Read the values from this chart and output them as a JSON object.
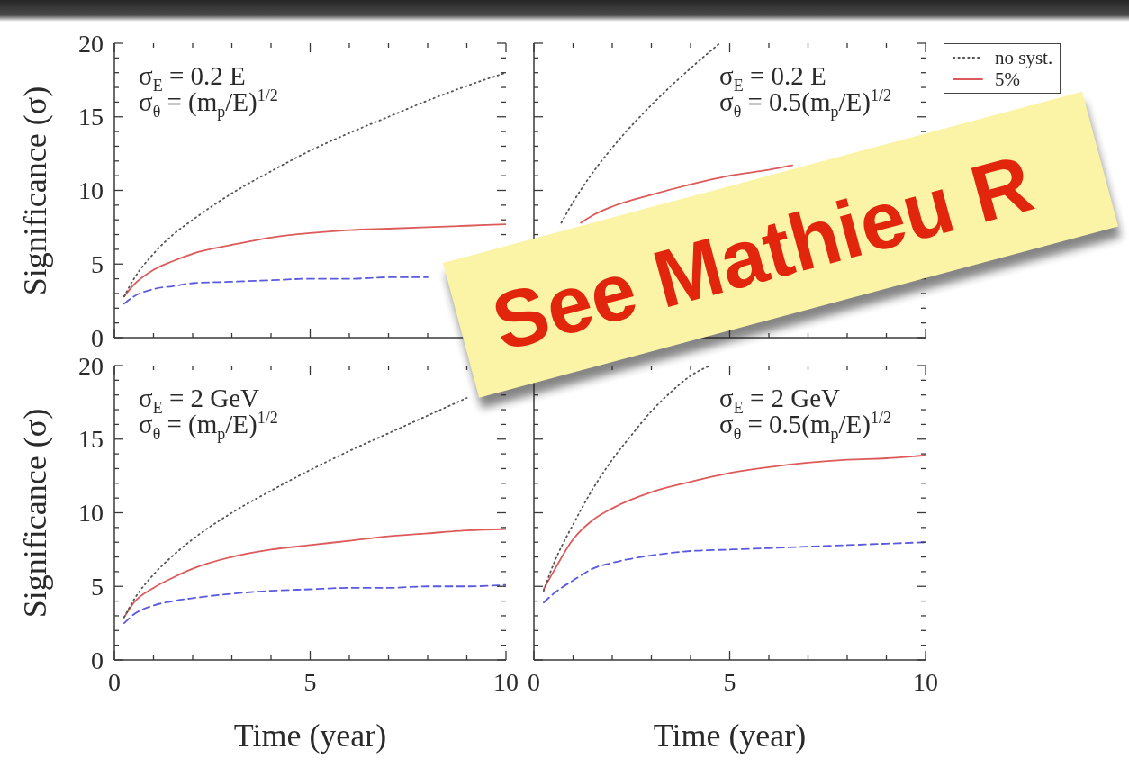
{
  "chart_data": [
    {
      "type": "line",
      "ylabel": "Significance (σ)",
      "tick_labels": "y",
      "xlim": [
        0,
        10
      ],
      "ylim": [
        0,
        20
      ],
      "xticks": [
        0,
        {
          "value": 1,
          "label": null
        },
        {
          "value": 2,
          "label": null
        },
        {
          "value": 3,
          "label": null
        },
        {
          "value": 4,
          "label": null
        },
        5,
        {
          "value": 6,
          "label": null
        },
        {
          "value": 7,
          "label": null
        },
        {
          "value": 8,
          "label": null
        },
        {
          "value": 9,
          "label": null
        },
        10
      ],
      "yticks": [
        0,
        {
          "value": 1,
          "label": null
        },
        {
          "value": 2,
          "label": null
        },
        {
          "value": 3,
          "label": null
        },
        {
          "value": 4,
          "label": null
        },
        5,
        {
          "value": 6,
          "label": null
        },
        {
          "value": 7,
          "label": null
        },
        {
          "value": 8,
          "label": null
        },
        {
          "value": 9,
          "label": null
        },
        10,
        {
          "value": 11,
          "label": null
        },
        {
          "value": 12,
          "label": null
        },
        {
          "value": 13,
          "label": null
        },
        {
          "value": 14,
          "label": null
        },
        15,
        {
          "value": 16,
          "label": null
        },
        {
          "value": 17,
          "label": null
        },
        {
          "value": 18,
          "label": null
        },
        {
          "value": 19,
          "label": null
        },
        20
      ],
      "annotations": [
        "σ$_{E}$ = 0.2 E",
        "σ$_{θ}$ = (m$_{p}$/E)$^{1/2}$"
      ],
      "x": [
        0.25,
        0.5,
        1,
        1.5,
        2,
        3,
        4,
        5,
        6,
        7,
        8,
        9,
        10
      ],
      "series": [
        {
          "color": "#555555",
          "line_style": "dotted",
          "values": [
            2.8,
            4.0,
            5.7,
            7.0,
            8.0,
            9.8,
            11.3,
            12.7,
            13.9,
            15.0,
            16.1,
            17.1,
            18.0
          ]
        },
        {
          "color": "#dd5a5a",
          "line_style": "solid",
          "values": [
            2.8,
            3.6,
            4.6,
            5.2,
            5.7,
            6.3,
            6.8,
            7.1,
            7.3,
            7.4,
            7.5,
            7.6,
            7.7
          ]
        },
        {
          "color": "#5a5ae0",
          "line_style": "dashed",
          "values": [
            2.3,
            2.8,
            3.3,
            3.5,
            3.7,
            3.8,
            3.9,
            4.0,
            4.0,
            4.1,
            4.1,
            null,
            null
          ]
        }
      ]
    },
    {
      "type": "line",
      "tick_labels": false,
      "legend": "right",
      "xlim": [
        0,
        10
      ],
      "ylim": [
        0,
        20
      ],
      "xticks": [
        0,
        {
          "value": 1,
          "label": null
        },
        {
          "value": 2,
          "label": null
        },
        {
          "value": 3,
          "label": null
        },
        {
          "value": 4,
          "label": null
        },
        5,
        {
          "value": 6,
          "label": null
        },
        {
          "value": 7,
          "label": null
        },
        {
          "value": 8,
          "label": null
        },
        {
          "value": 9,
          "label": null
        },
        10
      ],
      "yticks": [
        0,
        {
          "value": 1,
          "label": null
        },
        {
          "value": 2,
          "label": null
        },
        {
          "value": 3,
          "label": null
        },
        {
          "value": 4,
          "label": null
        },
        5,
        {
          "value": 6,
          "label": null
        },
        {
          "value": 7,
          "label": null
        },
        {
          "value": 8,
          "label": null
        },
        {
          "value": 9,
          "label": null
        },
        10,
        {
          "value": 11,
          "label": null
        },
        {
          "value": 12,
          "label": null
        },
        {
          "value": 13,
          "label": null
        },
        {
          "value": 14,
          "label": null
        },
        15,
        {
          "value": 16,
          "label": null
        },
        {
          "value": 17,
          "label": null
        },
        {
          "value": 18,
          "label": null
        },
        {
          "value": 19,
          "label": null
        },
        20
      ],
      "annotations": [
        "σ$_{E}$ = 0.2 E",
        "σ$_{θ}$ = 0.5(m$_{p}$/E)$^{1/2}$"
      ],
      "series": [
        {
          "name": "no syst.",
          "color": "#555555",
          "line_style": "dotted",
          "x": [
            0.7,
            1,
            1.5,
            2,
            3,
            4,
            4.75
          ],
          "values": [
            7.8,
            9.2,
            11.2,
            12.9,
            15.8,
            18.3,
            20.0
          ]
        },
        {
          "name": "5%",
          "color": "#dd5a5a",
          "line_style": "solid",
          "x": [
            1.2,
            1.5,
            2,
            3,
            4,
            5,
            6,
            6.6
          ],
          "values": [
            7.8,
            8.3,
            8.9,
            9.7,
            10.4,
            11.0,
            11.4,
            11.7
          ]
        }
      ]
    },
    {
      "type": "line",
      "xlabel": "Time (year)",
      "ylabel": "Significance (σ)",
      "xlim": [
        0,
        10
      ],
      "ylim": [
        0,
        20
      ],
      "xticks": [
        0,
        {
          "value": 1,
          "label": null
        },
        {
          "value": 2,
          "label": null
        },
        {
          "value": 3,
          "label": null
        },
        {
          "value": 4,
          "label": null
        },
        5,
        {
          "value": 6,
          "label": null
        },
        {
          "value": 7,
          "label": null
        },
        {
          "value": 8,
          "label": null
        },
        {
          "value": 9,
          "label": null
        },
        10
      ],
      "yticks": [
        0,
        {
          "value": 1,
          "label": null
        },
        {
          "value": 2,
          "label": null
        },
        {
          "value": 3,
          "label": null
        },
        {
          "value": 4,
          "label": null
        },
        5,
        {
          "value": 6,
          "label": null
        },
        {
          "value": 7,
          "label": null
        },
        {
          "value": 8,
          "label": null
        },
        {
          "value": 9,
          "label": null
        },
        10,
        {
          "value": 11,
          "label": null
        },
        {
          "value": 12,
          "label": null
        },
        {
          "value": 13,
          "label": null
        },
        {
          "value": 14,
          "label": null
        },
        15,
        {
          "value": 16,
          "label": null
        },
        {
          "value": 17,
          "label": null
        },
        {
          "value": 18,
          "label": null
        },
        {
          "value": 19,
          "label": null
        },
        20
      ],
      "annotations": [
        "σ$_{E}$ = 2 GeV",
        "σ$_{θ}$ = (m$_{p}$/E)$^{1/2}$"
      ],
      "x": [
        0.25,
        0.5,
        1,
        1.5,
        2,
        3,
        4,
        5,
        6,
        7,
        8,
        9,
        10
      ],
      "series": [
        {
          "color": "#555555",
          "line_style": "dotted",
          "values": [
            2.9,
            4.1,
            5.8,
            7.1,
            8.2,
            10.0,
            11.5,
            12.9,
            14.2,
            15.4,
            16.6,
            17.8,
            null
          ]
        },
        {
          "color": "#dd5a5a",
          "line_style": "solid",
          "values": [
            2.9,
            3.9,
            4.9,
            5.6,
            6.2,
            7.0,
            7.5,
            7.8,
            8.1,
            8.4,
            8.6,
            8.8,
            8.9
          ]
        },
        {
          "color": "#5a5ae0",
          "line_style": "dashed",
          "values": [
            2.5,
            3.1,
            3.7,
            4.0,
            4.2,
            4.5,
            4.7,
            4.8,
            4.9,
            4.9,
            5.0,
            5.0,
            5.1
          ]
        }
      ]
    },
    {
      "type": "line",
      "xlabel": "Time (year)",
      "tick_labels": "x",
      "xlim": [
        0,
        10
      ],
      "ylim": [
        0,
        20
      ],
      "xticks": [
        0,
        {
          "value": 1,
          "label": null
        },
        {
          "value": 2,
          "label": null
        },
        {
          "value": 3,
          "label": null
        },
        {
          "value": 4,
          "label": null
        },
        5,
        {
          "value": 6,
          "label": null
        },
        {
          "value": 7,
          "label": null
        },
        {
          "value": 8,
          "label": null
        },
        {
          "value": 9,
          "label": null
        },
        10
      ],
      "yticks": [
        0,
        {
          "value": 1,
          "label": null
        },
        {
          "value": 2,
          "label": null
        },
        {
          "value": 3,
          "label": null
        },
        {
          "value": 4,
          "label": null
        },
        5,
        {
          "value": 6,
          "label": null
        },
        {
          "value": 7,
          "label": null
        },
        {
          "value": 8,
          "label": null
        },
        {
          "value": 9,
          "label": null
        },
        10,
        {
          "value": 11,
          "label": null
        },
        {
          "value": 12,
          "label": null
        },
        {
          "value": 13,
          "label": null
        },
        {
          "value": 14,
          "label": null
        },
        15,
        {
          "value": 16,
          "label": null
        },
        {
          "value": 17,
          "label": null
        },
        {
          "value": 18,
          "label": null
        },
        {
          "value": 19,
          "label": null
        },
        20
      ],
      "annotations": [
        "σ$_{E}$ = 2 GeV",
        "σ$_{θ}$ = 0.5(m$_{p}$/E)$^{1/2}$"
      ],
      "x": [
        0.25,
        0.5,
        1,
        1.5,
        2,
        3,
        4,
        5,
        6,
        7,
        8,
        9,
        10
      ],
      "series": [
        {
          "color": "#555555",
          "line_style": "dotted",
          "x": [
            0.25,
            0.5,
            1,
            1.5,
            2,
            2.5,
            3,
            3.5,
            4,
            4.5
          ],
          "values": [
            4.7,
            6.5,
            9.2,
            11.6,
            13.6,
            15.3,
            16.9,
            18.2,
            19.3,
            20.0
          ]
        },
        {
          "color": "#dd5a5a",
          "line_style": "solid",
          "values": [
            4.8,
            6.0,
            8.2,
            9.5,
            10.3,
            11.4,
            12.1,
            12.7,
            13.1,
            13.4,
            13.6,
            13.7,
            13.9
          ]
        },
        {
          "color": "#5a5ae0",
          "line_style": "dashed",
          "values": [
            3.9,
            4.5,
            5.4,
            6.2,
            6.6,
            7.1,
            7.4,
            7.5,
            7.6,
            7.7,
            7.8,
            7.9,
            8.0
          ]
        }
      ]
    },
    {
      "type": "other",
      "annotations": [
        "See Mathieu R"
      ]
    }
  ]
}
